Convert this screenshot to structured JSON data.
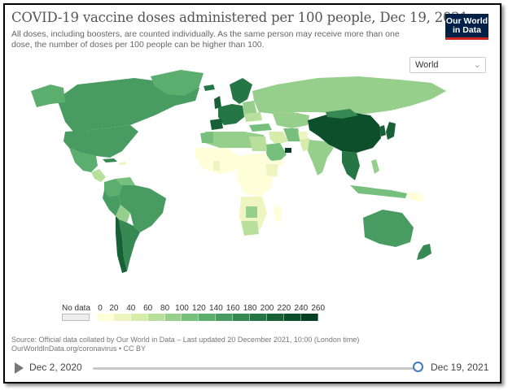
{
  "header": {
    "title": "COVID-19 vaccine doses administered per 100 people, Dec 19, 2021",
    "subtitle": "All doses, including boosters, are counted individually. As the same person may receive more than one dose, the number of doses per 100 people can be higher than 100.",
    "logo_line1": "Our World",
    "logo_line2": "in Data"
  },
  "region_select": {
    "value": "World",
    "icon": "chevron-down-icon"
  },
  "legend": {
    "no_data_label": "No data",
    "no_data_color": "#eeeeee",
    "ticks": [
      "0",
      "20",
      "40",
      "60",
      "80",
      "100",
      "120",
      "140",
      "160",
      "180",
      "200",
      "220",
      "240",
      "260"
    ],
    "colors": [
      "#fefed9",
      "#eef5c0",
      "#d6ecab",
      "#b8df9b",
      "#96cf8c",
      "#76bf7d",
      "#5cae6e",
      "#489c61",
      "#368953",
      "#267545",
      "#186137",
      "#0d4f2b",
      "#063f21"
    ]
  },
  "map_colors": {
    "ocean": "#ffffff",
    "land_default": "#e9e9e9"
  },
  "source": {
    "line1": "Source: Official data collated by Our World in Data – Last updated 20 December 2021, 10:00 (London time)",
    "line2": "OurWorldInData.org/coronavirus • CC BY"
  },
  "timeline": {
    "start_label": "Dec 2, 2020",
    "end_label": "Dec 19, 2021",
    "position": 1.0
  }
}
